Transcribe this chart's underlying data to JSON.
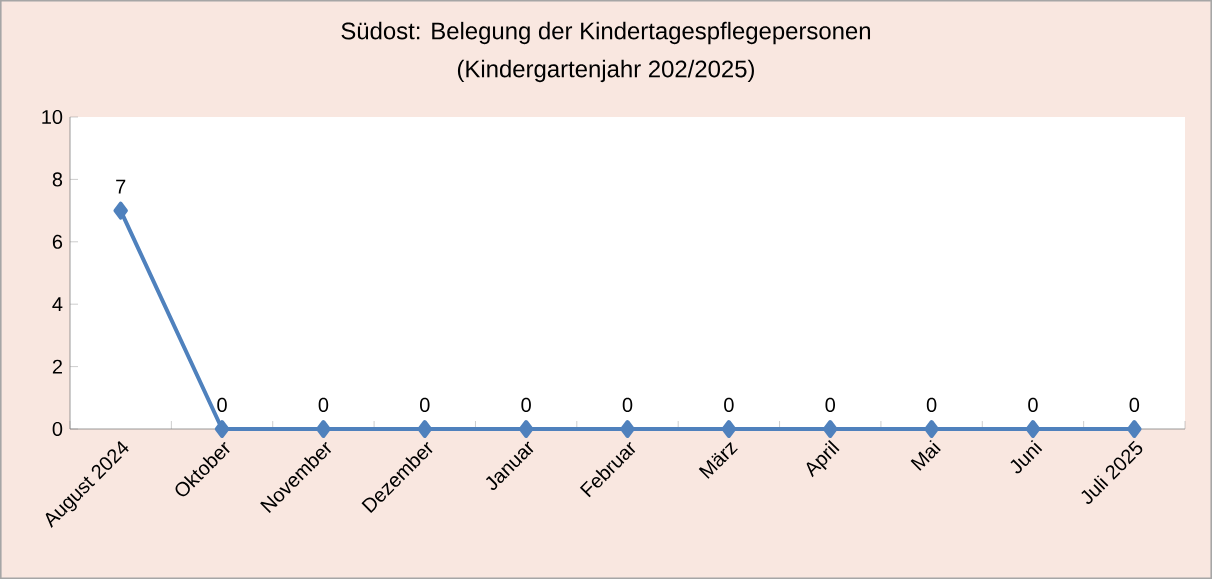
{
  "chart_data": {
    "type": "line",
    "title": "Südost: Belegung der Kindertagespflegepersonen",
    "subtitle": "(Kindergartenjahr 202/2025)",
    "categories": [
      "August 2024",
      "Oktober",
      "November",
      "Dezember",
      "Januar",
      "Februar",
      "März",
      "April",
      "Mai",
      "Juni",
      "Juli 2025"
    ],
    "values": [
      7,
      0,
      0,
      0,
      0,
      0,
      0,
      0,
      0,
      0,
      0
    ],
    "color": "#4f81bd",
    "marker": "diamond",
    "data_labels": true,
    "ylim": [
      0,
      10
    ],
    "yticks": [
      0,
      2,
      4,
      6,
      8,
      10
    ]
  }
}
